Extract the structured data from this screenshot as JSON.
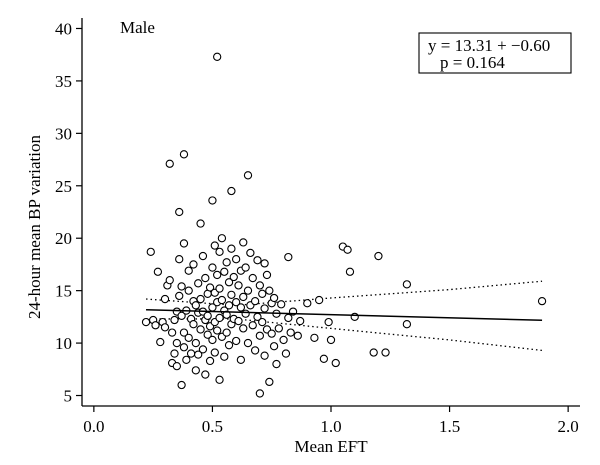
{
  "chart_data": {
    "type": "scatter",
    "panel_label": "Male",
    "xlabel": "Mean EFT",
    "ylabel": "24-hour mean BP variation",
    "xlim": [
      -0.05,
      2.05
    ],
    "ylim": [
      4,
      41
    ],
    "x_ticks": [
      0.0,
      0.5,
      1.0,
      1.5,
      2.0
    ],
    "x_tick_labels": [
      "0.0",
      "0.5",
      "1.0",
      "1.5",
      "2.0"
    ],
    "y_ticks": [
      5,
      10,
      15,
      20,
      25,
      30,
      35,
      40
    ],
    "y_tick_labels": [
      "5",
      "10",
      "15",
      "20",
      "25",
      "30",
      "35",
      "40"
    ],
    "equation": {
      "line1": "y = 13.31 + −0.60",
      "line2": "p = 0.164"
    },
    "regression": {
      "intercept": 13.31,
      "slope": -0.6,
      "x_range": [
        0.22,
        1.89
      ],
      "ci_upper": [
        [
          0.22,
          14.2
        ],
        [
          0.6,
          13.6
        ],
        [
          1.0,
          14.3
        ],
        [
          1.5,
          15.1
        ],
        [
          1.89,
          15.9
        ]
      ],
      "ci_lower": [
        [
          0.22,
          12.3
        ],
        [
          0.6,
          12.3
        ],
        [
          1.0,
          11.4
        ],
        [
          1.5,
          10.3
        ],
        [
          1.89,
          9.3
        ]
      ]
    },
    "grid": false,
    "points": [
      [
        0.22,
        12.0
      ],
      [
        0.24,
        18.7
      ],
      [
        0.25,
        12.2
      ],
      [
        0.26,
        11.7
      ],
      [
        0.27,
        16.8
      ],
      [
        0.28,
        10.1
      ],
      [
        0.29,
        12.0
      ],
      [
        0.3,
        11.5
      ],
      [
        0.3,
        14.2
      ],
      [
        0.31,
        15.5
      ],
      [
        0.32,
        16.0
      ],
      [
        0.32,
        27.1
      ],
      [
        0.33,
        11.0
      ],
      [
        0.33,
        8.1
      ],
      [
        0.34,
        9.0
      ],
      [
        0.34,
        12.2
      ],
      [
        0.35,
        10.0
      ],
      [
        0.35,
        13.0
      ],
      [
        0.35,
        7.8
      ],
      [
        0.36,
        22.5
      ],
      [
        0.36,
        18.0
      ],
      [
        0.36,
        14.5
      ],
      [
        0.37,
        15.4
      ],
      [
        0.37,
        12.6
      ],
      [
        0.37,
        6.0
      ],
      [
        0.38,
        28.0
      ],
      [
        0.38,
        19.5
      ],
      [
        0.38,
        11.0
      ],
      [
        0.38,
        9.6
      ],
      [
        0.39,
        13.1
      ],
      [
        0.39,
        8.4
      ],
      [
        0.4,
        15.0
      ],
      [
        0.4,
        16.9
      ],
      [
        0.4,
        10.5
      ],
      [
        0.41,
        12.3
      ],
      [
        0.41,
        9.0
      ],
      [
        0.42,
        14.0
      ],
      [
        0.42,
        11.8
      ],
      [
        0.42,
        17.5
      ],
      [
        0.43,
        13.6
      ],
      [
        0.43,
        10.0
      ],
      [
        0.43,
        7.4
      ],
      [
        0.44,
        12.9
      ],
      [
        0.44,
        15.7
      ],
      [
        0.44,
        8.9
      ],
      [
        0.45,
        21.4
      ],
      [
        0.45,
        14.2
      ],
      [
        0.45,
        11.3
      ],
      [
        0.46,
        18.3
      ],
      [
        0.46,
        13.0
      ],
      [
        0.46,
        9.4
      ],
      [
        0.47,
        12.2
      ],
      [
        0.47,
        16.2
      ],
      [
        0.47,
        7.0
      ],
      [
        0.48,
        10.8
      ],
      [
        0.48,
        14.7
      ],
      [
        0.48,
        12.6
      ],
      [
        0.49,
        15.3
      ],
      [
        0.49,
        11.6
      ],
      [
        0.49,
        8.3
      ],
      [
        0.5,
        23.6
      ],
      [
        0.5,
        17.2
      ],
      [
        0.5,
        13.4
      ],
      [
        0.5,
        10.3
      ],
      [
        0.51,
        19.3
      ],
      [
        0.51,
        14.8
      ],
      [
        0.51,
        12.0
      ],
      [
        0.51,
        9.1
      ],
      [
        0.52,
        37.3
      ],
      [
        0.52,
        16.5
      ],
      [
        0.52,
        13.9
      ],
      [
        0.52,
        11.2
      ],
      [
        0.53,
        18.7
      ],
      [
        0.53,
        15.2
      ],
      [
        0.53,
        12.4
      ],
      [
        0.53,
        6.5
      ],
      [
        0.54,
        20.0
      ],
      [
        0.54,
        14.1
      ],
      [
        0.54,
        10.6
      ],
      [
        0.55,
        16.8
      ],
      [
        0.55,
        13.1
      ],
      [
        0.55,
        8.7
      ],
      [
        0.56,
        17.7
      ],
      [
        0.56,
        12.7
      ],
      [
        0.56,
        11.0
      ],
      [
        0.57,
        15.8
      ],
      [
        0.57,
        13.6
      ],
      [
        0.57,
        9.8
      ],
      [
        0.58,
        24.5
      ],
      [
        0.58,
        19.0
      ],
      [
        0.58,
        14.6
      ],
      [
        0.58,
        11.8
      ],
      [
        0.59,
        16.3
      ],
      [
        0.59,
        12.3
      ],
      [
        0.6,
        18.0
      ],
      [
        0.6,
        13.9
      ],
      [
        0.6,
        10.2
      ],
      [
        0.61,
        15.5
      ],
      [
        0.61,
        12.1
      ],
      [
        0.62,
        16.9
      ],
      [
        0.62,
        13.4
      ],
      [
        0.62,
        8.4
      ],
      [
        0.63,
        19.6
      ],
      [
        0.63,
        14.4
      ],
      [
        0.63,
        11.4
      ],
      [
        0.64,
        17.2
      ],
      [
        0.64,
        12.8
      ],
      [
        0.65,
        26.0
      ],
      [
        0.65,
        15.0
      ],
      [
        0.65,
        10.0
      ],
      [
        0.66,
        18.6
      ],
      [
        0.66,
        13.6
      ],
      [
        0.67,
        16.2
      ],
      [
        0.67,
        11.7
      ],
      [
        0.68,
        14.0
      ],
      [
        0.68,
        9.3
      ],
      [
        0.69,
        17.9
      ],
      [
        0.69,
        12.5
      ],
      [
        0.7,
        15.5
      ],
      [
        0.7,
        10.7
      ],
      [
        0.7,
        5.2
      ],
      [
        0.71,
        14.7
      ],
      [
        0.71,
        12.0
      ],
      [
        0.72,
        17.6
      ],
      [
        0.72,
        13.3
      ],
      [
        0.72,
        8.8
      ],
      [
        0.73,
        16.5
      ],
      [
        0.73,
        11.3
      ],
      [
        0.74,
        15.0
      ],
      [
        0.74,
        6.3
      ],
      [
        0.75,
        13.8
      ],
      [
        0.75,
        10.9
      ],
      [
        0.76,
        14.3
      ],
      [
        0.76,
        9.7
      ],
      [
        0.77,
        12.8
      ],
      [
        0.77,
        8.0
      ],
      [
        0.78,
        11.4
      ],
      [
        0.79,
        13.7
      ],
      [
        0.8,
        10.3
      ],
      [
        0.81,
        9.0
      ],
      [
        0.82,
        18.2
      ],
      [
        0.82,
        12.4
      ],
      [
        0.83,
        11.0
      ],
      [
        0.84,
        13.0
      ],
      [
        0.86,
        10.7
      ],
      [
        0.87,
        12.1
      ],
      [
        0.9,
        13.8
      ],
      [
        0.93,
        10.5
      ],
      [
        0.95,
        14.1
      ],
      [
        0.97,
        8.5
      ],
      [
        0.99,
        12.0
      ],
      [
        1.0,
        10.3
      ],
      [
        1.02,
        8.1
      ],
      [
        1.05,
        19.2
      ],
      [
        1.07,
        18.9
      ],
      [
        1.08,
        16.8
      ],
      [
        1.1,
        12.5
      ],
      [
        1.18,
        9.1
      ],
      [
        1.2,
        18.3
      ],
      [
        1.23,
        9.1
      ],
      [
        1.32,
        15.6
      ],
      [
        1.32,
        11.8
      ],
      [
        1.89,
        14.0
      ]
    ]
  }
}
